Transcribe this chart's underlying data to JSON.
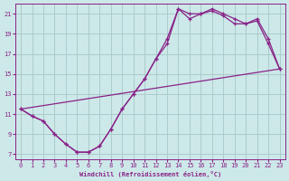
{
  "xlabel": "Windchill (Refroidissement éolien,°C)",
  "xlim": [
    -0.5,
    23.5
  ],
  "ylim": [
    6.5,
    22.0
  ],
  "xticks": [
    0,
    1,
    2,
    3,
    4,
    5,
    6,
    7,
    8,
    9,
    10,
    11,
    12,
    13,
    14,
    15,
    16,
    17,
    18,
    19,
    20,
    21,
    22,
    23
  ],
  "yticks": [
    7,
    9,
    11,
    13,
    15,
    17,
    19,
    21
  ],
  "background_color": "#cde8e8",
  "grid_color": "#aacccc",
  "line_color": "#882288",
  "curve1_x": [
    0,
    1,
    2,
    3,
    4,
    5,
    6,
    7,
    8,
    9,
    10,
    11,
    12,
    13,
    14,
    15,
    16,
    17,
    18,
    19,
    20,
    21,
    22,
    23
  ],
  "curve1_y": [
    11.5,
    10.8,
    10.3,
    9.0,
    8.0,
    7.2,
    7.2,
    7.8,
    9.5,
    11.5,
    13.0,
    14.5,
    16.5,
    18.0,
    21.5,
    21.0,
    21.0,
    21.5,
    21.0,
    20.5,
    20.0,
    20.5,
    18.5,
    15.5
  ],
  "curve2_x": [
    0,
    1,
    2,
    3,
    4,
    5,
    6,
    7,
    8,
    9,
    10,
    11,
    12,
    13,
    14,
    15,
    16,
    17,
    18,
    19,
    20,
    21,
    22,
    23
  ],
  "curve2_y": [
    11.5,
    10.8,
    10.3,
    9.0,
    8.0,
    7.2,
    7.2,
    7.8,
    9.5,
    11.5,
    13.0,
    14.5,
    16.5,
    18.5,
    21.5,
    20.5,
    21.0,
    21.3,
    20.8,
    20.0,
    20.0,
    20.3,
    18.0,
    15.5
  ],
  "curve3_x": [
    0,
    23
  ],
  "curve3_y": [
    11.5,
    15.5
  ]
}
